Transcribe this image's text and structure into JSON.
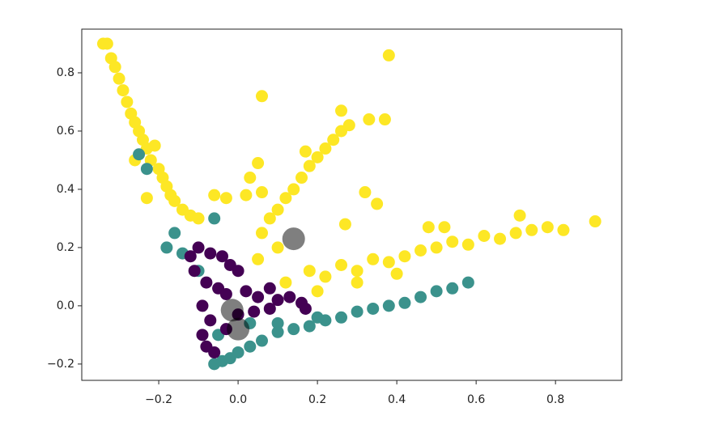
{
  "chart_data": {
    "type": "scatter",
    "xlim": [
      -0.394,
      0.967
    ],
    "ylim": [
      -0.256,
      0.95
    ],
    "xticks": [
      {
        "value": -0.2,
        "label": "−0.2"
      },
      {
        "value": 0.0,
        "label": "0.0"
      },
      0.2,
      0.4,
      0.6,
      0.8
    ],
    "yticks": [
      {
        "value": -0.2,
        "label": "−0.2"
      },
      {
        "value": 0.0,
        "label": "0.0"
      },
      0.2,
      0.4,
      0.6,
      0.8
    ],
    "series": [
      {
        "color": "#fde725",
        "x": [
          -0.34,
          -0.33,
          -0.32,
          -0.31,
          -0.3,
          -0.29,
          -0.28,
          -0.27,
          -0.26,
          -0.25,
          -0.24,
          -0.23,
          -0.22,
          -0.21,
          -0.2,
          -0.19,
          -0.18,
          -0.17,
          -0.16,
          -0.14,
          -0.12,
          -0.1,
          -0.26,
          -0.23,
          -0.06,
          -0.03,
          0.02,
          0.06,
          0.03,
          0.05,
          0.06,
          0.08,
          0.1,
          0.12,
          0.14,
          0.16,
          0.18,
          0.2,
          0.22,
          0.24,
          0.26,
          0.28,
          0.26,
          0.33,
          0.37,
          0.38,
          0.06,
          0.17,
          0.32,
          0.35,
          0.27,
          0.05,
          0.1,
          0.12,
          0.18,
          0.22,
          0.26,
          0.3,
          0.34,
          0.38,
          0.42,
          0.46,
          0.5,
          0.54,
          0.58,
          0.62,
          0.66,
          0.7,
          0.74,
          0.78,
          0.82,
          0.9,
          0.71,
          0.48,
          0.52,
          0.2,
          0.3,
          0.4
        ],
        "y": [
          0.9,
          0.9,
          0.85,
          0.82,
          0.78,
          0.74,
          0.7,
          0.66,
          0.63,
          0.6,
          0.57,
          0.54,
          0.5,
          0.55,
          0.47,
          0.44,
          0.41,
          0.38,
          0.36,
          0.33,
          0.31,
          0.3,
          0.5,
          0.37,
          0.38,
          0.37,
          0.38,
          0.39,
          0.44,
          0.49,
          0.25,
          0.3,
          0.33,
          0.37,
          0.4,
          0.44,
          0.48,
          0.51,
          0.54,
          0.57,
          0.6,
          0.62,
          0.67,
          0.64,
          0.64,
          0.86,
          0.72,
          0.53,
          0.39,
          0.35,
          0.28,
          0.16,
          0.2,
          0.08,
          0.12,
          0.1,
          0.14,
          0.12,
          0.16,
          0.15,
          0.17,
          0.19,
          0.2,
          0.22,
          0.21,
          0.24,
          0.23,
          0.25,
          0.26,
          0.27,
          0.26,
          0.29,
          0.31,
          0.27,
          0.27,
          0.05,
          0.08,
          0.11
        ]
      },
      {
        "color": "#3b928c",
        "x": [
          -0.06,
          -0.04,
          -0.02,
          0.0,
          0.03,
          0.06,
          0.1,
          0.14,
          0.18,
          0.22,
          0.26,
          0.3,
          0.34,
          0.38,
          0.42,
          0.46,
          0.5,
          0.54,
          0.58,
          -0.25,
          -0.23,
          -0.16,
          -0.06,
          -0.18,
          -0.14,
          -0.1,
          -0.05,
          0.1,
          0.2,
          0.03
        ],
        "y": [
          -0.2,
          -0.19,
          -0.18,
          -0.16,
          -0.14,
          -0.12,
          -0.09,
          -0.08,
          -0.07,
          -0.05,
          -0.04,
          -0.02,
          -0.01,
          0.0,
          0.01,
          0.03,
          0.05,
          0.06,
          0.08,
          0.52,
          0.47,
          0.25,
          0.3,
          0.2,
          0.18,
          0.12,
          -0.1,
          -0.06,
          -0.04,
          -0.06
        ]
      },
      {
        "color": "#440154",
        "x": [
          -0.1,
          -0.07,
          -0.04,
          -0.02,
          0.0,
          -0.08,
          -0.05,
          -0.03,
          0.02,
          0.05,
          0.08,
          0.1,
          0.13,
          0.16,
          0.17,
          -0.09,
          -0.07,
          -0.09,
          -0.08,
          -0.06,
          -0.03,
          0.0,
          0.04,
          0.08,
          -0.11,
          -0.12
        ],
        "y": [
          0.2,
          0.18,
          0.17,
          0.14,
          0.12,
          0.08,
          0.06,
          0.04,
          0.05,
          0.03,
          0.06,
          0.02,
          0.03,
          0.01,
          -0.01,
          0.0,
          -0.05,
          -0.1,
          -0.14,
          -0.16,
          -0.08,
          -0.03,
          -0.02,
          -0.01,
          0.12,
          0.17
        ]
      },
      {
        "color": "#000000",
        "opacity": 0.5,
        "x": [
          0.14,
          -0.015,
          0.0
        ],
        "y": [
          0.23,
          -0.015,
          -0.08
        ]
      }
    ]
  }
}
